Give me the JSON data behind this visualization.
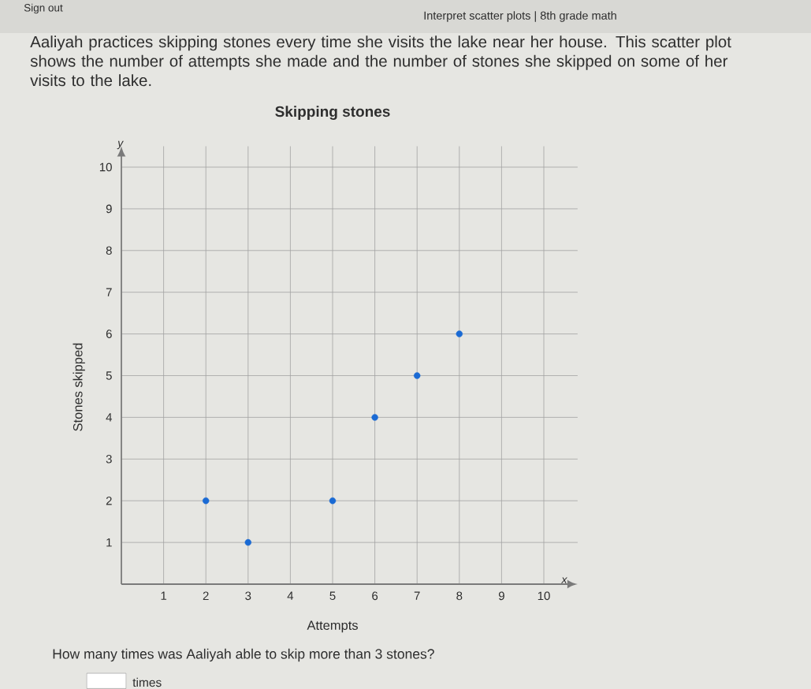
{
  "chart_data": {
    "type": "scatter",
    "title": "Skipping stones",
    "subtitle": "Aaliyah practices skipping stones every time she visits the lake near her house. This scatter plot shows the number of attempts she made and the number of stones she skipped on some of her visits to the lake.",
    "xlabel": "Attempts",
    "ylabel": "Stones skipped",
    "x": [
      2,
      3,
      5,
      6,
      7,
      8
    ],
    "values": [
      2,
      1,
      2,
      4,
      5,
      6
    ],
    "color": "#1a6ad4",
    "marker": "circle",
    "xlim": [
      0,
      10.8
    ],
    "ylim": [
      0,
      10.5
    ],
    "xticks": [
      1,
      2,
      3,
      4,
      5,
      6,
      7,
      8,
      9,
      10
    ],
    "yticks": [
      1,
      2,
      3,
      4,
      5,
      6,
      7,
      8,
      9,
      10
    ],
    "grid": true,
    "annotations": [
      "Sign out",
      "Interpret scatter plots | 8th grade math",
      "x",
      "y",
      "How many times was Aaliyah able to skip more than 3 stones?",
      "times"
    ]
  }
}
